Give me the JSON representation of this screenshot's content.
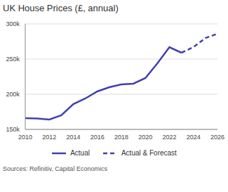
{
  "chart_data": {
    "type": "line",
    "title": "UK House Prices (£, annual)",
    "source": "Sources: Refinitiv, Capital Economics",
    "x": [
      2010,
      2011,
      2012,
      2013,
      2014,
      2015,
      2016,
      2017,
      2018,
      2019,
      2020,
      2021,
      2022,
      2023,
      2024,
      2025,
      2026
    ],
    "series": [
      {
        "name": "Actual",
        "color": "#4040b0",
        "line_style": "solid",
        "values": [
          166000,
          165500,
          164000,
          170000,
          186000,
          194000,
          204000,
          210000,
          214000,
          215000,
          223000,
          244000,
          267000,
          259000,
          null,
          null,
          null
        ]
      },
      {
        "name": "Actual & Forecast",
        "color": "#4040b0",
        "line_style": "dashed",
        "values": [
          null,
          null,
          null,
          null,
          null,
          null,
          null,
          null,
          null,
          null,
          null,
          null,
          null,
          259000,
          267000,
          280000,
          286000
        ]
      }
    ],
    "xlim": [
      2010,
      2026
    ],
    "xticks": [
      2010,
      2012,
      2014,
      2016,
      2018,
      2020,
      2022,
      2024,
      2026
    ],
    "ylim": [
      150000,
      300000
    ],
    "yticks": [
      {
        "value": 150000,
        "label": "150k"
      },
      {
        "value": 200000,
        "label": "200k"
      },
      {
        "value": 250000,
        "label": "250k"
      },
      {
        "value": 300000,
        "label": "300k"
      }
    ],
    "grid": true,
    "legend": "bottom"
  }
}
